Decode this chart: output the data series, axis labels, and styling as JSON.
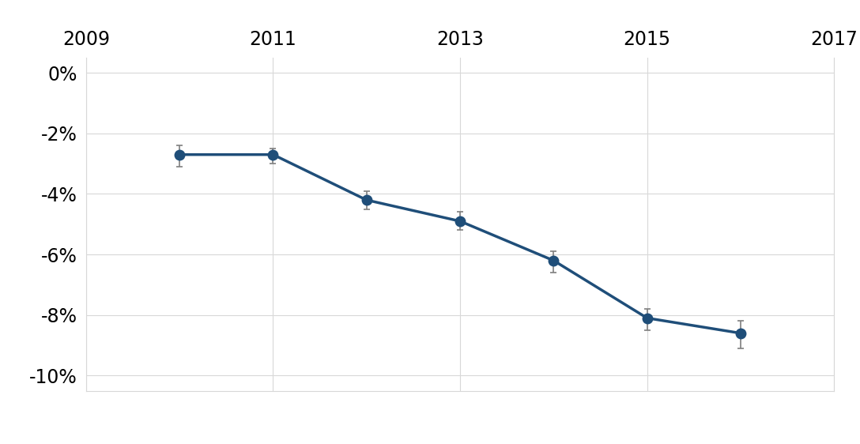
{
  "x": [
    2010,
    2011,
    2012,
    2013,
    2014,
    2015,
    2016
  ],
  "y": [
    -0.027,
    -0.027,
    -0.042,
    -0.049,
    -0.062,
    -0.081,
    -0.086
  ],
  "yerr_lower": [
    0.004,
    0.003,
    0.003,
    0.003,
    0.004,
    0.004,
    0.005
  ],
  "yerr_upper": [
    0.003,
    0.002,
    0.003,
    0.003,
    0.003,
    0.003,
    0.004
  ],
  "xlim": [
    2009,
    2017
  ],
  "ylim": [
    -0.105,
    0.005
  ],
  "xticks": [
    2009,
    2011,
    2013,
    2015,
    2017
  ],
  "yticks": [
    0.0,
    -0.02,
    -0.04,
    -0.06,
    -0.08,
    -0.1
  ],
  "ytick_labels": [
    "0%",
    "-2%",
    "-4%",
    "-6%",
    "-8%",
    "-10%"
  ],
  "line_color": "#1F4E79",
  "marker_color": "#1F4E79",
  "errorbar_color": "#7F7F7F",
  "background_color": "#FFFFFF",
  "plot_bg_color": "#FFFFFF",
  "grid_color": "#D8D8D8",
  "marker_size": 9,
  "line_width": 2.5,
  "capsize": 3,
  "elinewidth": 1.2,
  "tick_fontsize": 17,
  "figsize": [
    10.88,
    5.62
  ],
  "dpi": 100
}
